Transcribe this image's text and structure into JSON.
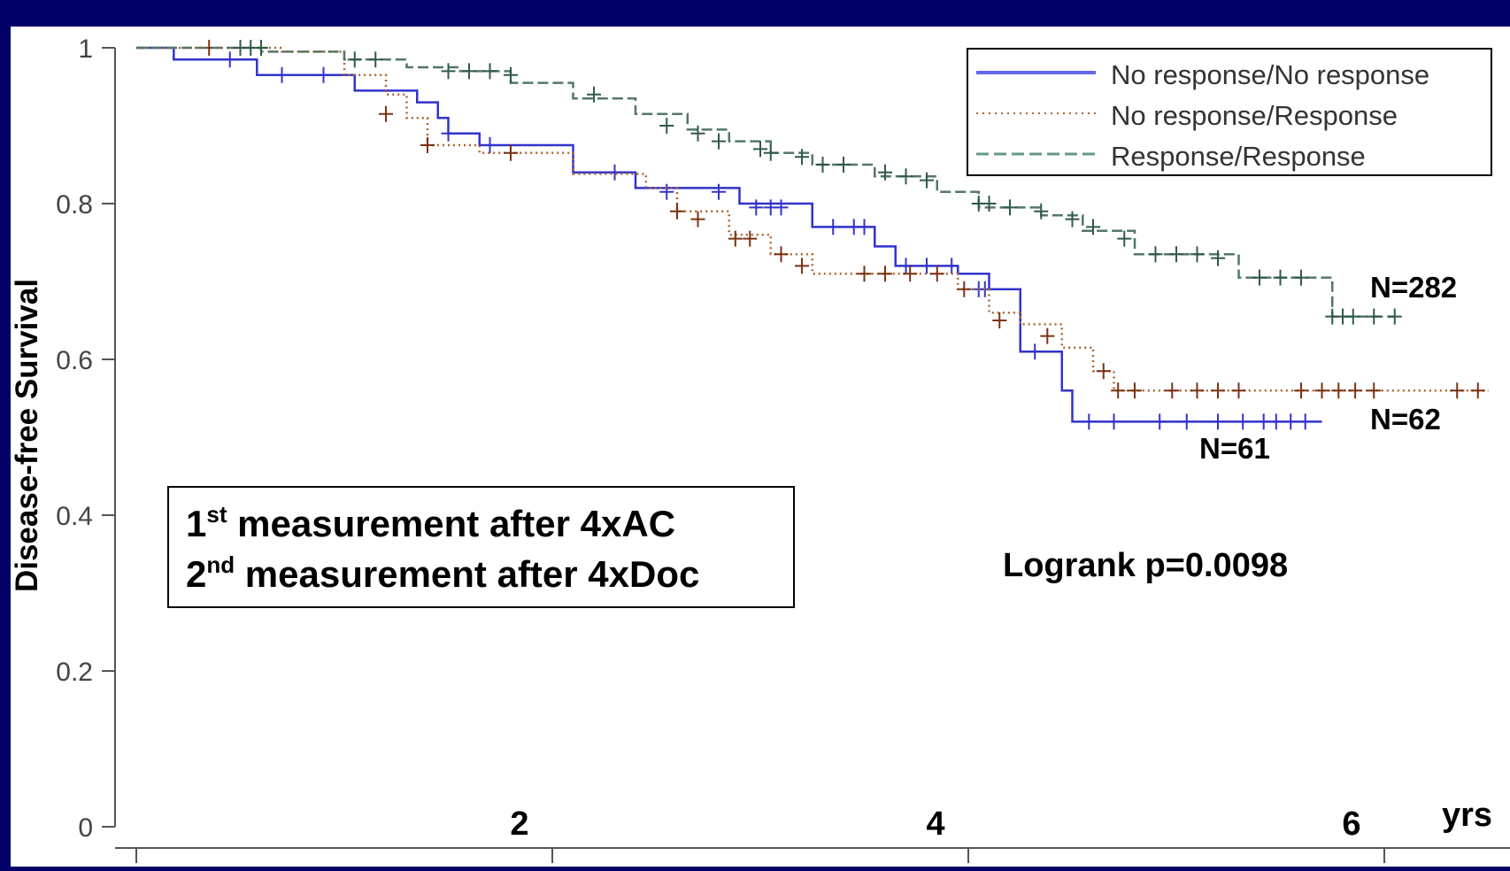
{
  "chart_data": {
    "type": "line",
    "subtype": "kaplan-meier",
    "ylabel": "Disease-free Survival",
    "x_unit_label": "yrs",
    "xlim": [
      -0.05,
      6.5
    ],
    "ylim": [
      0,
      1
    ],
    "x_ticks": [
      0,
      2,
      4,
      6
    ],
    "x_tick_labels": [
      "",
      "2",
      "4",
      "6"
    ],
    "y_ticks": [
      0,
      0.2,
      0.4,
      0.6,
      0.8,
      1
    ],
    "y_tick_labels": [
      "0",
      "0.2",
      "0.4",
      "0.6",
      "0.8",
      "1"
    ],
    "legend": {
      "placement": "top-right",
      "entries": [
        "No response/No response",
        "No response/Response",
        "Response/Response"
      ]
    },
    "series": [
      {
        "name": "No response/No response",
        "color": "#3333cc",
        "style": "solid",
        "steps": [
          [
            0,
            1
          ],
          [
            0.18,
            0.985
          ],
          [
            0.58,
            0.965
          ],
          [
            1.05,
            0.945
          ],
          [
            1.35,
            0.93
          ],
          [
            1.45,
            0.91
          ],
          [
            1.5,
            0.89
          ],
          [
            1.65,
            0.875
          ],
          [
            2.1,
            0.84
          ],
          [
            2.4,
            0.82
          ],
          [
            2.9,
            0.8
          ],
          [
            3.25,
            0.77
          ],
          [
            3.55,
            0.745
          ],
          [
            3.65,
            0.72
          ],
          [
            3.95,
            0.71
          ],
          [
            4.1,
            0.69
          ],
          [
            4.25,
            0.61
          ],
          [
            4.45,
            0.56
          ],
          [
            4.5,
            0.52
          ],
          [
            5.7,
            0.52
          ]
        ],
        "censor_x": [
          0.45,
          0.7,
          0.9,
          1.5,
          1.7,
          2.3,
          2.55,
          2.8,
          2.98,
          3.05,
          3.1,
          3.35,
          3.45,
          3.5,
          3.7,
          3.8,
          3.92,
          4.05,
          4.08,
          4.32,
          4.58,
          4.7,
          4.92,
          5.05,
          5.2,
          5.32,
          5.42,
          5.48,
          5.55,
          5.62
        ],
        "censor_offsets": [
          0.985,
          0.965,
          0.965,
          0.89,
          0.875,
          0.84,
          0.815,
          0.815,
          0.795,
          0.795,
          0.795,
          0.77,
          0.77,
          0.77,
          0.72,
          0.72,
          0.72,
          0.69,
          0.69,
          0.61,
          0.52,
          0.52,
          0.52,
          0.52,
          0.52,
          0.52,
          0.52,
          0.52,
          0.52,
          0.52
        ],
        "label": "N=61"
      },
      {
        "name": "No response/Response",
        "color": "#993300",
        "style": "dotted",
        "steps": [
          [
            0,
            1
          ],
          [
            0.7,
            0.995
          ],
          [
            1.0,
            0.965
          ],
          [
            1.2,
            0.94
          ],
          [
            1.3,
            0.91
          ],
          [
            1.4,
            0.875
          ],
          [
            1.65,
            0.865
          ],
          [
            2.1,
            0.838
          ],
          [
            2.45,
            0.82
          ],
          [
            2.6,
            0.79
          ],
          [
            2.85,
            0.76
          ],
          [
            3.05,
            0.735
          ],
          [
            3.25,
            0.71
          ],
          [
            3.65,
            0.71
          ],
          [
            3.95,
            0.69
          ],
          [
            4.1,
            0.66
          ],
          [
            4.25,
            0.645
          ],
          [
            4.45,
            0.615
          ],
          [
            4.6,
            0.585
          ],
          [
            4.7,
            0.56
          ],
          [
            6.5,
            0.56
          ]
        ],
        "censor_x": [
          0.35,
          0.6,
          1.2,
          1.4,
          1.8,
          2.6,
          2.7,
          2.88,
          2.95,
          3.1,
          3.2,
          3.5,
          3.6,
          3.72,
          3.85,
          3.98,
          4.15,
          4.38,
          4.65,
          4.72,
          4.8,
          4.98,
          5.1,
          5.2,
          5.3,
          5.6,
          5.7,
          5.78,
          5.86,
          5.95,
          6.35,
          6.45
        ],
        "censor_offsets": [
          1.0,
          1.0,
          0.915,
          0.875,
          0.865,
          0.79,
          0.78,
          0.755,
          0.755,
          0.735,
          0.72,
          0.71,
          0.71,
          0.71,
          0.71,
          0.69,
          0.65,
          0.63,
          0.585,
          0.56,
          0.56,
          0.56,
          0.56,
          0.56,
          0.56,
          0.56,
          0.56,
          0.56,
          0.56,
          0.56,
          0.56,
          0.56
        ],
        "label": "N=62"
      },
      {
        "name": "Response/Response",
        "color": "#336655",
        "style": "dashed",
        "steps": [
          [
            0,
            1
          ],
          [
            0.6,
            0.995
          ],
          [
            1.0,
            0.985
          ],
          [
            1.3,
            0.975
          ],
          [
            1.55,
            0.97
          ],
          [
            1.8,
            0.955
          ],
          [
            2.1,
            0.935
          ],
          [
            2.4,
            0.915
          ],
          [
            2.65,
            0.895
          ],
          [
            2.85,
            0.88
          ],
          [
            3.05,
            0.865
          ],
          [
            3.25,
            0.85
          ],
          [
            3.55,
            0.835
          ],
          [
            3.85,
            0.815
          ],
          [
            4.05,
            0.795
          ],
          [
            4.35,
            0.785
          ],
          [
            4.55,
            0.765
          ],
          [
            4.8,
            0.735
          ],
          [
            5.3,
            0.705
          ],
          [
            5.75,
            0.655
          ],
          [
            6.05,
            0.655
          ]
        ],
        "censor_x": [
          0.5,
          0.55,
          0.6,
          1.05,
          1.15,
          1.5,
          1.6,
          1.7,
          1.8,
          2.2,
          2.55,
          2.7,
          2.8,
          3.0,
          3.05,
          3.2,
          3.3,
          3.4,
          3.6,
          3.7,
          3.8,
          4.05,
          4.1,
          4.2,
          4.35,
          4.5,
          4.6,
          4.75,
          4.9,
          5.0,
          5.1,
          5.2,
          5.4,
          5.5,
          5.6,
          5.75,
          5.8,
          5.85,
          5.95,
          6.05
        ],
        "censor_offsets": [
          1.0,
          1.0,
          1.0,
          0.985,
          0.985,
          0.97,
          0.97,
          0.97,
          0.965,
          0.94,
          0.9,
          0.89,
          0.88,
          0.87,
          0.865,
          0.86,
          0.85,
          0.85,
          0.84,
          0.835,
          0.83,
          0.8,
          0.8,
          0.795,
          0.79,
          0.78,
          0.77,
          0.755,
          0.735,
          0.735,
          0.735,
          0.73,
          0.705,
          0.705,
          0.705,
          0.655,
          0.655,
          0.655,
          0.655,
          0.655
        ],
        "label": "N=282"
      }
    ],
    "annotations": {
      "box_line1_pre": "1",
      "box_line1_sup": "st",
      "box_line1_post": " measurement after 4xAC",
      "box_line2_pre": "2",
      "box_line2_sup": "nd",
      "box_line2_post": " measurement after 4xDoc",
      "logrank": "Logrank p=0.0098"
    }
  }
}
